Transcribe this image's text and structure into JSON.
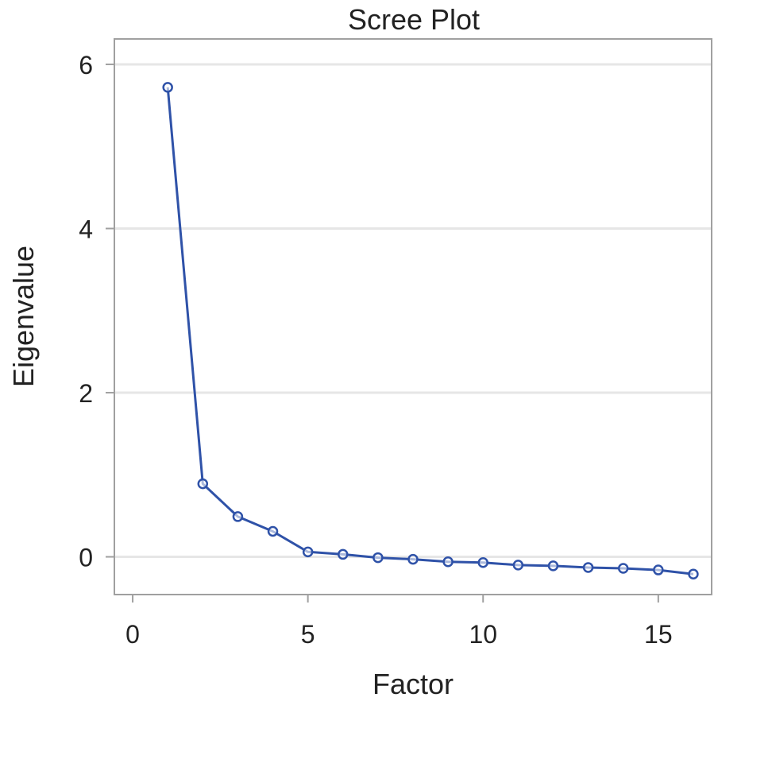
{
  "chart_data": {
    "type": "line",
    "title": "Scree Plot",
    "xlabel": "Factor",
    "ylabel": "Eigenvalue",
    "xlim": [
      -0.5,
      16.5
    ],
    "ylim": [
      -0.45,
      6.3
    ],
    "xticks": [
      0,
      5,
      10,
      15
    ],
    "yticks": [
      0,
      2,
      4,
      6
    ],
    "grid": {
      "horizontal": true,
      "vertical": false
    },
    "legend": "none",
    "series": [
      {
        "x": [
          1,
          2,
          3,
          4,
          5,
          6,
          7,
          8,
          9,
          10,
          11,
          12,
          13,
          14,
          15,
          16
        ],
        "values": [
          5.72,
          0.89,
          0.49,
          0.31,
          0.06,
          0.03,
          -0.01,
          -0.03,
          -0.06,
          -0.07,
          -0.1,
          -0.11,
          -0.13,
          -0.14,
          -0.16,
          -0.21
        ]
      }
    ],
    "colors": {
      "line": "#2f52a8",
      "grid": "#e6e6e6",
      "frame": "#a0a0a0",
      "text": "#222222"
    }
  }
}
